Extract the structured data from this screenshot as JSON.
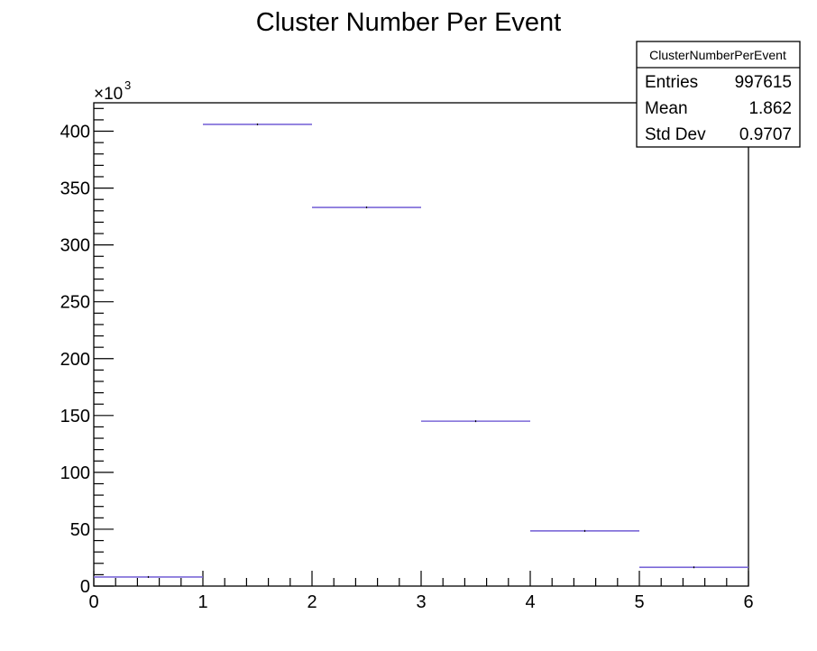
{
  "chart_data": {
    "type": "bar",
    "title": "Cluster Number Per Event",
    "xlabel": "",
    "ylabel": "",
    "x_bins": [
      [
        0,
        1
      ],
      [
        1,
        2
      ],
      [
        2,
        3
      ],
      [
        3,
        4
      ],
      [
        4,
        5
      ],
      [
        5,
        6
      ]
    ],
    "values": [
      8000,
      406000,
      333000,
      145000,
      48500,
      16500
    ],
    "xlim": [
      0,
      6
    ],
    "ylim": [
      0,
      425000
    ],
    "x_ticks": [
      "0",
      "1",
      "2",
      "3",
      "4",
      "5",
      "6"
    ],
    "y_ticks": [
      "0",
      "50",
      "100",
      "150",
      "200",
      "250",
      "300",
      "350",
      "400"
    ],
    "y_multiplier": {
      "base": "×10",
      "exponent": "3"
    },
    "series_color": "#7b68d8",
    "grid": false,
    "stats_box": {
      "name": "ClusterNumberPerEvent",
      "rows": [
        {
          "label": "Entries",
          "value": "997615"
        },
        {
          "label": "Mean",
          "value": "1.862"
        },
        {
          "label": "Std Dev",
          "value": "0.9707"
        }
      ]
    }
  }
}
